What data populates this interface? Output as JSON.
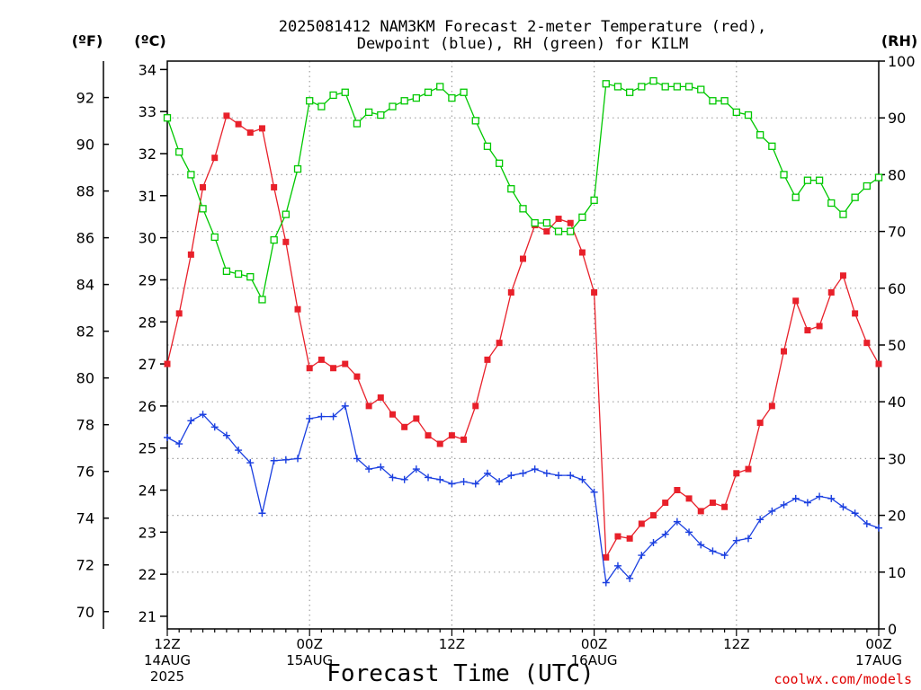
{
  "chart_data": {
    "type": "line",
    "title_line1": "2025081412 NAM3KM Forecast 2-meter Temperature (red),",
    "title_line2": "Dewpoint (blue), RH (green) for KILM",
    "xlabel": "Forecast Time (UTC)",
    "credit": "coolwx.com/models",
    "units": {
      "fahrenheit": "(ºF)",
      "celsius": "(ºC)",
      "rh": "(RH)"
    },
    "x_ticks": [
      {
        "hour": 0,
        "line1": "12Z",
        "line2": "14AUG",
        "line3": "2025"
      },
      {
        "hour": 12,
        "line1": "00Z",
        "line2": "15AUG",
        "line3": ""
      },
      {
        "hour": 24,
        "line1": "12Z",
        "line2": "",
        "line3": ""
      },
      {
        "hour": 36,
        "line1": "00Z",
        "line2": "16AUG",
        "line3": ""
      },
      {
        "hour": 48,
        "line1": "12Z",
        "line2": "",
        "line3": ""
      },
      {
        "hour": 60,
        "line1": "00Z",
        "line2": "17AUG",
        "line3": ""
      }
    ],
    "xlim": [
      0,
      60
    ],
    "celsius_axis": {
      "ylim": [
        20.7,
        34.2
      ],
      "ticks": [
        21,
        22,
        23,
        24,
        25,
        26,
        27,
        28,
        29,
        30,
        31,
        32,
        33,
        34
      ]
    },
    "fahrenheit_ticks": [
      70,
      72,
      74,
      76,
      78,
      80,
      82,
      84,
      86,
      88,
      90,
      92
    ],
    "rh_axis": {
      "ylim": [
        0,
        100
      ],
      "ticks": [
        0,
        10,
        20,
        30,
        40,
        50,
        60,
        70,
        80,
        90,
        100
      ]
    },
    "grid": true,
    "colors": {
      "temperature": "#e8202a",
      "dewpoint": "#1a3fe0",
      "rh": "#00c800",
      "grid": "#a0a0a0"
    },
    "series": [
      {
        "name": "Temperature",
        "axis": "celsius",
        "marker": "filled-square",
        "values": [
          27.0,
          28.2,
          29.6,
          31.2,
          31.9,
          32.9,
          32.7,
          32.5,
          32.6,
          31.2,
          29.9,
          28.3,
          26.9,
          27.1,
          26.9,
          27.0,
          26.7,
          26.0,
          26.2,
          25.8,
          25.5,
          25.7,
          25.3,
          25.1,
          25.3,
          25.2,
          26.0,
          27.1,
          27.5,
          28.7,
          29.5,
          30.3,
          30.15,
          30.45,
          30.35,
          29.65,
          28.7,
          22.4,
          22.9,
          22.85,
          23.2,
          23.4,
          23.7,
          24.0,
          23.8,
          23.5,
          23.7,
          23.6,
          24.4,
          24.5,
          25.6,
          26.0,
          27.3,
          28.5,
          27.8,
          27.9,
          28.7,
          29.1,
          28.2,
          27.5,
          27.0
        ]
      },
      {
        "name": "Dewpoint",
        "axis": "celsius",
        "marker": "plus",
        "values": [
          25.25,
          25.1,
          25.65,
          25.8,
          25.5,
          25.3,
          24.95,
          24.65,
          23.45,
          24.7,
          24.72,
          24.75,
          25.7,
          25.75,
          25.75,
          26.0,
          24.75,
          24.5,
          24.55,
          24.3,
          24.25,
          24.5,
          24.3,
          24.25,
          24.15,
          24.2,
          24.15,
          24.4,
          24.2,
          24.35,
          24.4,
          24.5,
          24.4,
          24.35,
          24.35,
          24.25,
          23.95,
          21.8,
          22.2,
          21.9,
          22.45,
          22.75,
          22.95,
          23.25,
          23.0,
          22.7,
          22.55,
          22.45,
          22.8,
          22.85,
          23.3,
          23.5,
          23.65,
          23.8,
          23.7,
          23.85,
          23.8,
          23.6,
          23.45,
          23.2,
          23.1
        ]
      },
      {
        "name": "RH",
        "axis": "rh",
        "marker": "open-square",
        "values": [
          90,
          84,
          80,
          74,
          69,
          63,
          62.5,
          62,
          58,
          68.5,
          73,
          81,
          93,
          92,
          94,
          94.5,
          89,
          91,
          90.5,
          92,
          93,
          93.5,
          94.5,
          95.5,
          93.5,
          94.5,
          89.5,
          85,
          82,
          77.5,
          74,
          71.5,
          71.5,
          70,
          70,
          72.5,
          75.5,
          96,
          95.5,
          94.5,
          95.5,
          96.5,
          95.5,
          95.5,
          95.5,
          95,
          93,
          93,
          91,
          90.5,
          87,
          85,
          80,
          76,
          79,
          79,
          75,
          73,
          76,
          78,
          79.5
        ]
      }
    ]
  }
}
